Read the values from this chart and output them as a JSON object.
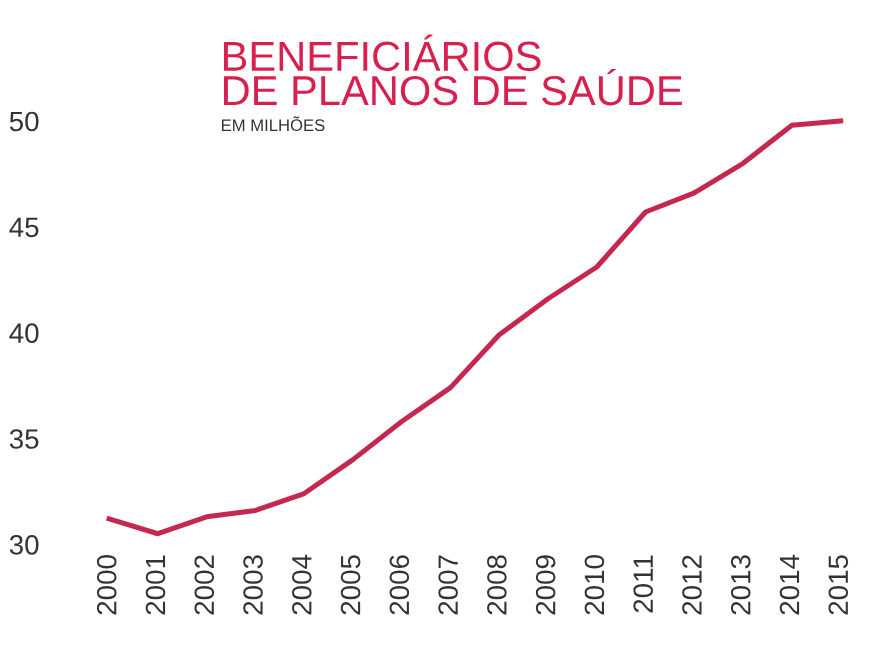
{
  "chart_data": {
    "type": "line",
    "title": "BENEFICIÁRIOS\nDE PLANOS DE SAÚDE",
    "subtitle": "EM MILHÕES",
    "categories": [
      "2000",
      "2001",
      "2002",
      "2003",
      "2004",
      "2005",
      "2006",
      "2007",
      "2008",
      "2009",
      "2010",
      "2011",
      "2012",
      "2013",
      "2014",
      "2015"
    ],
    "series": [
      {
        "color": "#c4284f",
        "values": [
          31.2,
          30.5,
          31.3,
          31.6,
          32.4,
          34.0,
          35.8,
          37.4,
          39.9,
          41.6,
          43.1,
          45.7,
          46.6,
          48.0,
          49.8,
          50.0
        ]
      }
    ],
    "ylim": [
      30,
      50
    ],
    "yticks": [
      30,
      35,
      40,
      45,
      50
    ],
    "grid": false,
    "legend": false
  }
}
